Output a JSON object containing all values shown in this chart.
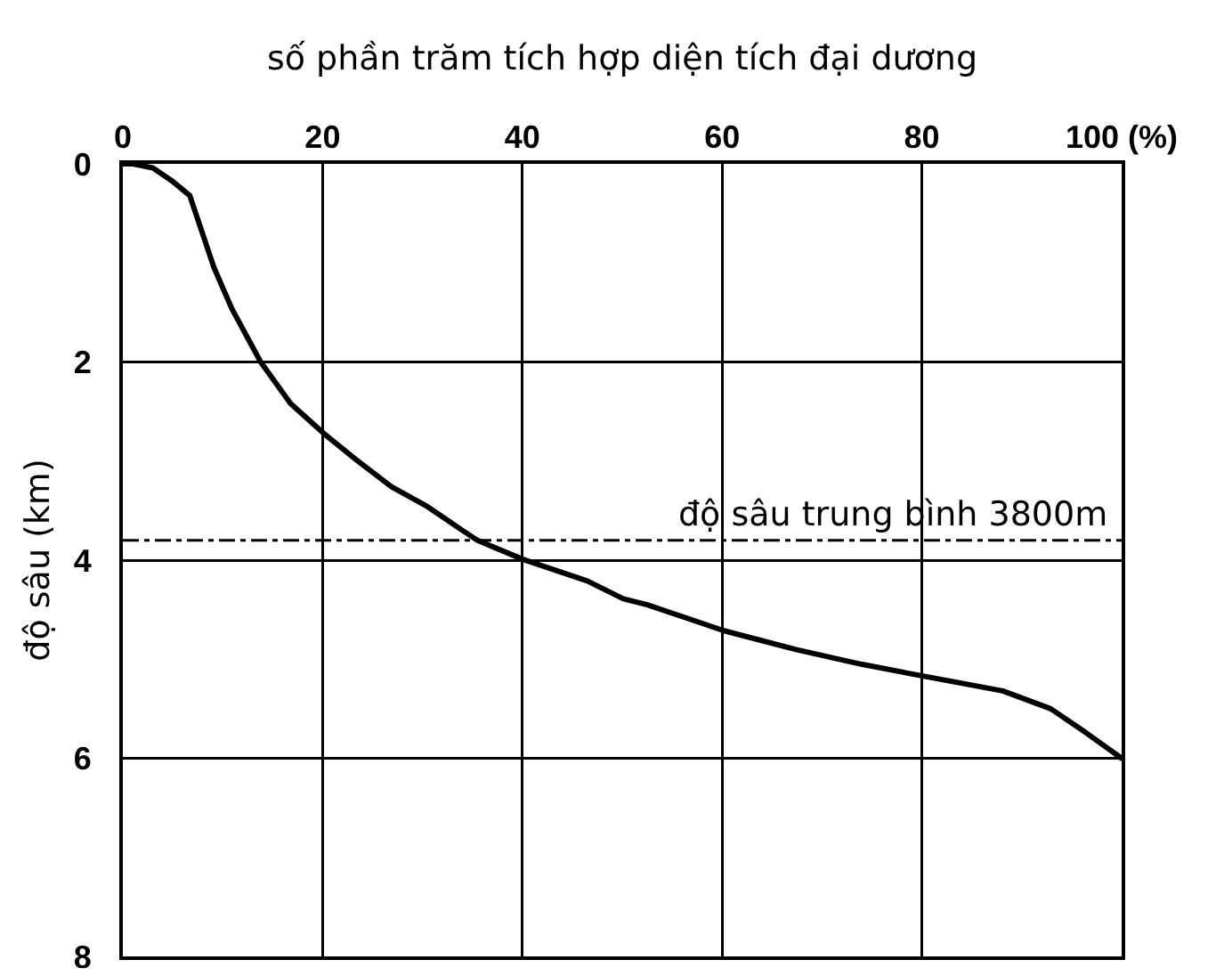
{
  "chart_data": {
    "type": "line",
    "xlabel": "số phần trăm tích hợp diện tích đại dương",
    "ylabel": "độ sâu (km)",
    "x": [
      0,
      1,
      3,
      4.9,
      6.7,
      7.9,
      9.1,
      10.9,
      13.8,
      16.8,
      20.1,
      23.4,
      26.9,
      30.5,
      34,
      35.5,
      40,
      46.5,
      50.1,
      52.5,
      60.1,
      67.3,
      73.9,
      80.1,
      88.1,
      92.9,
      96.4,
      100
    ],
    "series": [
      {
        "color": "#000000",
        "values": [
          0,
          0,
          0.04,
          0.17,
          0.32,
          0.68,
          1.04,
          1.46,
          2.0,
          2.42,
          2.72,
          2.99,
          3.26,
          3.46,
          3.7,
          3.8,
          3.99,
          4.21,
          4.39,
          4.45,
          4.71,
          4.9,
          5.05,
          5.17,
          5.32,
          5.5,
          5.74,
          6.0
        ]
      }
    ],
    "xlim": [
      0,
      100
    ],
    "xticks": [
      0,
      20,
      40,
      60,
      80,
      {
        "value": 100,
        "label": "100 (%)"
      }
    ],
    "ylim": [
      8,
      0
    ],
    "yticks": [
      0,
      2,
      4,
      6,
      8
    ],
    "grid": true,
    "ref_lines": [
      {
        "axis": "y",
        "value": 3.8,
        "label": "độ sâu trung bình 3800m",
        "color": "#000000",
        "line_style": "dashdot"
      }
    ]
  }
}
